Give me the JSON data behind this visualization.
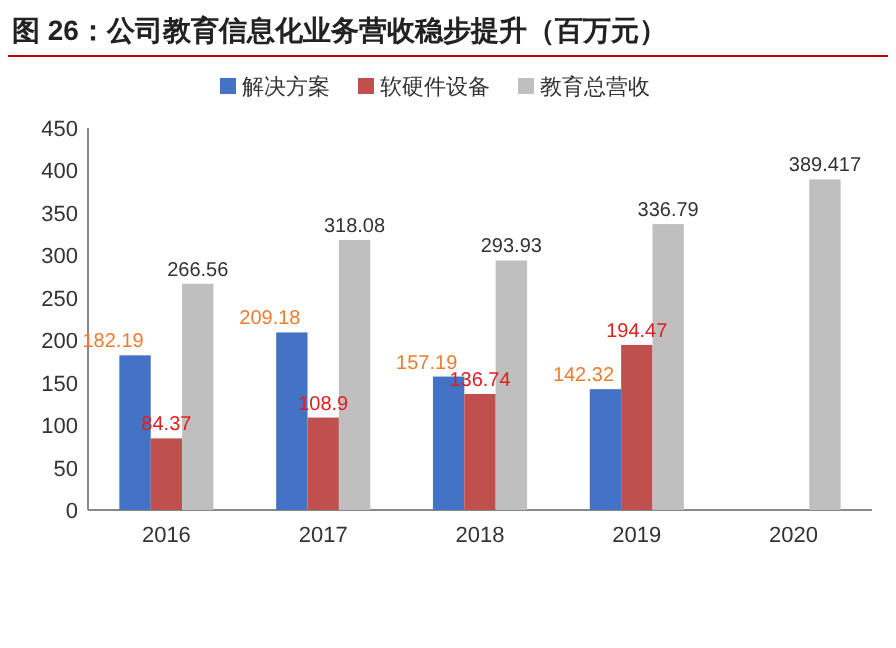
{
  "chart_data": {
    "type": "bar",
    "title": "图 26：公司教育信息化业务营收稳步提升（百万元）",
    "categories": [
      "2016",
      "2017",
      "2018",
      "2019",
      "2020"
    ],
    "series": [
      {
        "name": "解决方案",
        "color": "#4472c4",
        "values": [
          182.19,
          209.18,
          157.19,
          142.32,
          null
        ]
      },
      {
        "name": "软硬件设备",
        "color": "#c0504d",
        "values": [
          84.37,
          108.9,
          136.74,
          194.47,
          null
        ]
      },
      {
        "name": "教育总营收",
        "color": "#bfbfbf",
        "values": [
          266.56,
          318.08,
          293.93,
          336.79,
          389.417
        ]
      }
    ],
    "ylim": [
      0,
      450
    ],
    "yticks": [
      0,
      50,
      100,
      150,
      200,
      250,
      300,
      350,
      400,
      450
    ],
    "data_labels": true,
    "legend": "top",
    "grid": false
  }
}
